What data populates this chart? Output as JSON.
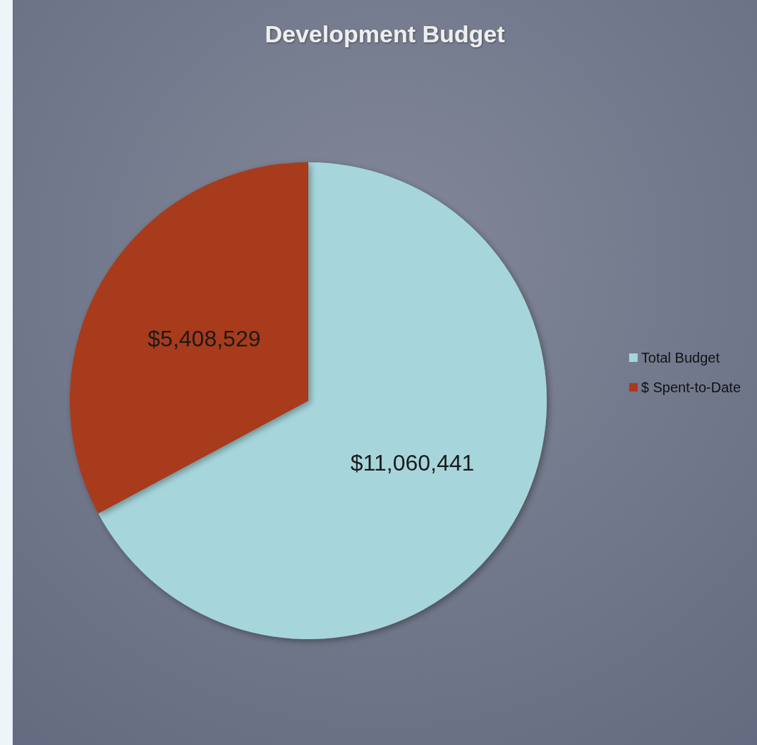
{
  "chart_data": {
    "type": "pie",
    "title": "Development Budget",
    "categories": [
      "Total Budget",
      "$ Spent-to-Date"
    ],
    "values": [
      11060441,
      5408529
    ],
    "value_labels": [
      "$11,060,441",
      "$5,408,529"
    ],
    "colors": [
      "#a6d6dc",
      "#a83a1c"
    ],
    "legend": "right"
  }
}
